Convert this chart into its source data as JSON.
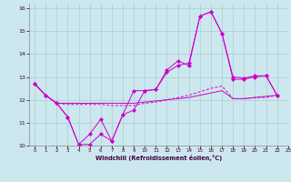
{
  "background_color": "#cce8ee",
  "grid_color": "#aacccc",
  "line_color": "#cc00cc",
  "xlim": [
    -0.5,
    23
  ],
  "ylim": [
    10,
    16.2
  ],
  "yticks": [
    10,
    11,
    12,
    13,
    14,
    15,
    16
  ],
  "xticks": [
    0,
    1,
    2,
    3,
    4,
    5,
    6,
    7,
    8,
    9,
    10,
    11,
    12,
    13,
    14,
    15,
    16,
    17,
    18,
    19,
    20,
    21,
    22,
    23
  ],
  "xlabel": "Windchill (Refroidissement éolien,°C)",
  "s1_x": [
    0,
    1,
    2,
    3,
    4,
    5,
    6,
    7,
    8,
    9,
    10,
    11,
    12,
    13,
    14,
    15,
    16,
    17,
    18,
    19,
    20,
    21,
    22
  ],
  "s1_y": [
    12.7,
    12.2,
    11.85,
    11.25,
    10.05,
    10.05,
    10.5,
    10.2,
    11.35,
    11.55,
    12.4,
    12.45,
    13.3,
    13.7,
    13.5,
    15.65,
    15.85,
    14.9,
    13.0,
    12.95,
    13.05,
    13.05,
    12.2
  ],
  "s2_x": [
    0,
    1,
    2,
    3,
    4,
    5,
    6,
    7,
    8,
    9,
    10,
    11,
    12,
    13,
    14,
    15,
    16,
    17,
    18,
    19,
    20,
    21,
    22
  ],
  "s2_y": [
    12.7,
    12.2,
    11.85,
    11.8,
    11.8,
    11.8,
    11.8,
    11.75,
    11.75,
    11.75,
    11.85,
    11.9,
    12.0,
    12.1,
    12.2,
    12.35,
    12.5,
    12.6,
    12.05,
    12.05,
    12.1,
    12.1,
    12.2
  ],
  "s3_x": [
    0,
    1,
    2,
    3,
    4,
    5,
    6,
    7,
    8,
    9,
    10,
    11,
    12,
    13,
    14,
    15,
    16,
    17,
    18,
    19,
    20,
    21,
    22
  ],
  "s3_y": [
    12.7,
    12.2,
    11.85,
    11.85,
    11.85,
    11.85,
    11.85,
    11.85,
    11.85,
    11.85,
    11.9,
    11.95,
    12.0,
    12.05,
    12.1,
    12.2,
    12.3,
    12.4,
    12.05,
    12.05,
    12.1,
    12.15,
    12.2
  ],
  "s4_x": [
    0,
    1,
    2,
    3,
    4,
    5,
    6,
    7,
    8,
    9,
    10,
    11,
    12,
    13,
    14,
    15,
    16,
    17,
    18,
    19,
    20,
    21,
    22
  ],
  "s4_y": [
    12.7,
    12.2,
    11.85,
    11.25,
    10.05,
    10.5,
    11.15,
    10.2,
    11.35,
    12.4,
    12.4,
    12.45,
    13.2,
    13.5,
    13.6,
    15.65,
    15.85,
    14.9,
    12.9,
    12.9,
    13.0,
    13.05,
    12.2
  ]
}
